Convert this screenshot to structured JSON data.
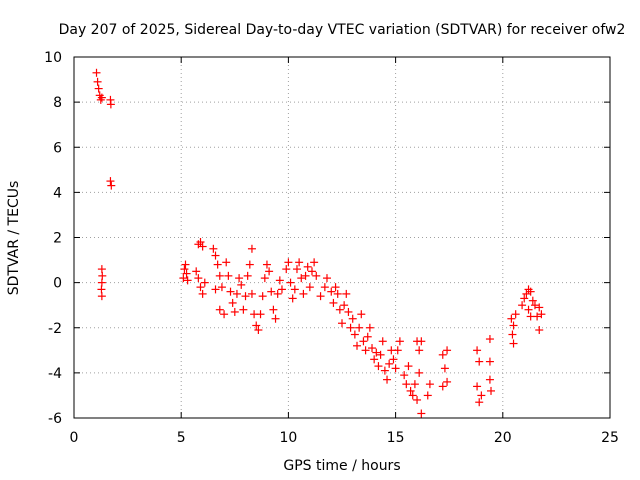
{
  "chart_data": {
    "type": "scatter",
    "title": "Day 207 of 2025, Sidereal Day-to-day VTEC variation (SDTVAR) for receiver ofw2",
    "xlabel": "GPS time / hours",
    "ylabel": "SDTVAR / TECUs",
    "xlim": [
      0,
      25
    ],
    "ylim": [
      -6,
      10
    ],
    "x_ticks": [
      0,
      5,
      10,
      15,
      20,
      25
    ],
    "x_tick_labels": [
      "0",
      "5",
      "10",
      "15",
      "20",
      "25"
    ],
    "y_ticks": [
      -6,
      -4,
      -2,
      0,
      2,
      4,
      6,
      8,
      10
    ],
    "y_tick_labels": [
      "-6",
      "-4",
      "-2",
      "0",
      "2",
      "4",
      "6",
      "8",
      "10"
    ],
    "grid": true,
    "marker": "+",
    "marker_color": "#ff0000",
    "series": [
      {
        "name": "SDTVAR",
        "points": [
          [
            1.05,
            9.3
          ],
          [
            1.1,
            8.9
          ],
          [
            1.15,
            8.6
          ],
          [
            1.2,
            8.3
          ],
          [
            1.25,
            8.1
          ],
          [
            1.3,
            8.2
          ],
          [
            1.7,
            8.1
          ],
          [
            1.72,
            7.9
          ],
          [
            1.7,
            4.5
          ],
          [
            1.74,
            4.3
          ],
          [
            1.3,
            0.6
          ],
          [
            1.32,
            0.3
          ],
          [
            1.3,
            0.0
          ],
          [
            1.28,
            -0.3
          ],
          [
            1.3,
            -0.6
          ],
          [
            5.1,
            0.2
          ],
          [
            5.15,
            0.6
          ],
          [
            5.2,
            0.8
          ],
          [
            5.25,
            0.4
          ],
          [
            5.3,
            0.1
          ],
          [
            5.8,
            1.7
          ],
          [
            5.9,
            1.8
          ],
          [
            6.0,
            1.6
          ],
          [
            5.7,
            0.5
          ],
          [
            5.8,
            0.2
          ],
          [
            5.9,
            -0.2
          ],
          [
            6.0,
            -0.5
          ],
          [
            6.1,
            0.0
          ],
          [
            6.5,
            1.5
          ],
          [
            6.6,
            1.2
          ],
          [
            6.7,
            0.8
          ],
          [
            6.8,
            0.3
          ],
          [
            6.9,
            -0.2
          ],
          [
            6.6,
            -0.3
          ],
          [
            6.8,
            -1.2
          ],
          [
            7.0,
            -1.4
          ],
          [
            7.1,
            0.9
          ],
          [
            7.2,
            0.3
          ],
          [
            7.3,
            -0.4
          ],
          [
            7.4,
            -0.9
          ],
          [
            7.5,
            -1.3
          ],
          [
            7.6,
            -0.5
          ],
          [
            7.7,
            0.2
          ],
          [
            7.8,
            -0.1
          ],
          [
            7.9,
            -1.2
          ],
          [
            8.0,
            -0.6
          ],
          [
            8.1,
            0.3
          ],
          [
            8.2,
            0.8
          ],
          [
            8.3,
            1.5
          ],
          [
            8.3,
            -0.5
          ],
          [
            8.4,
            -1.4
          ],
          [
            8.5,
            -1.9
          ],
          [
            8.6,
            -2.1
          ],
          [
            8.7,
            -1.4
          ],
          [
            8.8,
            -0.6
          ],
          [
            8.9,
            0.2
          ],
          [
            9.0,
            0.8
          ],
          [
            9.1,
            0.5
          ],
          [
            9.2,
            -0.4
          ],
          [
            9.3,
            -1.2
          ],
          [
            9.4,
            -1.6
          ],
          [
            9.5,
            -0.5
          ],
          [
            9.6,
            0.1
          ],
          [
            9.7,
            -0.3
          ],
          [
            9.9,
            0.6
          ],
          [
            10.0,
            0.9
          ],
          [
            10.1,
            0.0
          ],
          [
            10.2,
            -0.7
          ],
          [
            10.3,
            -0.3
          ],
          [
            10.4,
            0.6
          ],
          [
            10.5,
            0.9
          ],
          [
            10.6,
            0.2
          ],
          [
            10.7,
            -0.5
          ],
          [
            10.8,
            0.3
          ],
          [
            10.9,
            0.7
          ],
          [
            11.0,
            -0.2
          ],
          [
            11.1,
            0.5
          ],
          [
            11.2,
            0.9
          ],
          [
            11.3,
            0.3
          ],
          [
            11.5,
            -0.6
          ],
          [
            11.7,
            -0.2
          ],
          [
            11.8,
            0.2
          ],
          [
            12.0,
            -0.4
          ],
          [
            12.1,
            -0.9
          ],
          [
            12.2,
            -0.2
          ],
          [
            12.3,
            -0.5
          ],
          [
            12.4,
            -1.2
          ],
          [
            12.5,
            -1.8
          ],
          [
            12.6,
            -1.0
          ],
          [
            12.7,
            -0.5
          ],
          [
            12.8,
            -1.3
          ],
          [
            12.9,
            -2.0
          ],
          [
            13.0,
            -1.6
          ],
          [
            13.1,
            -2.3
          ],
          [
            13.2,
            -2.8
          ],
          [
            13.3,
            -2.0
          ],
          [
            13.4,
            -1.4
          ],
          [
            13.5,
            -2.6
          ],
          [
            13.6,
            -3.0
          ],
          [
            13.7,
            -2.4
          ],
          [
            13.8,
            -2.0
          ],
          [
            13.9,
            -2.9
          ],
          [
            14.0,
            -3.4
          ],
          [
            14.1,
            -3.1
          ],
          [
            14.2,
            -3.7
          ],
          [
            14.3,
            -3.2
          ],
          [
            14.4,
            -2.6
          ],
          [
            14.5,
            -3.9
          ],
          [
            14.6,
            -4.3
          ],
          [
            14.7,
            -3.6
          ],
          [
            14.8,
            -3.0
          ],
          [
            14.9,
            -3.4
          ],
          [
            15.0,
            -3.8
          ],
          [
            15.1,
            -3.0
          ],
          [
            15.2,
            -2.6
          ],
          [
            15.4,
            -4.1
          ],
          [
            15.5,
            -4.5
          ],
          [
            15.6,
            -3.7
          ],
          [
            15.7,
            -4.8
          ],
          [
            15.8,
            -5.0
          ],
          [
            15.9,
            -4.5
          ],
          [
            16.0,
            -5.2
          ],
          [
            16.1,
            -4.0
          ],
          [
            16.2,
            -5.8
          ],
          [
            16.0,
            -2.6
          ],
          [
            16.1,
            -3.0
          ],
          [
            16.2,
            -2.6
          ],
          [
            16.5,
            -5.0
          ],
          [
            16.6,
            -4.5
          ],
          [
            17.2,
            -3.2
          ],
          [
            17.3,
            -3.8
          ],
          [
            17.4,
            -4.4
          ],
          [
            17.2,
            -4.6
          ],
          [
            17.4,
            -3.0
          ],
          [
            18.8,
            -3.0
          ],
          [
            18.9,
            -3.5
          ],
          [
            18.8,
            -4.6
          ],
          [
            18.9,
            -5.3
          ],
          [
            19.0,
            -5.0
          ],
          [
            19.4,
            -2.5
          ],
          [
            19.4,
            -3.5
          ],
          [
            19.4,
            -4.3
          ],
          [
            19.45,
            -4.8
          ],
          [
            20.4,
            -1.6
          ],
          [
            20.5,
            -1.9
          ],
          [
            20.45,
            -2.3
          ],
          [
            20.5,
            -2.7
          ],
          [
            20.6,
            -1.4
          ],
          [
            20.9,
            -1.0
          ],
          [
            21.0,
            -0.7
          ],
          [
            21.1,
            -0.5
          ],
          [
            21.2,
            -0.3
          ],
          [
            21.3,
            -0.4
          ],
          [
            21.4,
            -0.8
          ],
          [
            21.5,
            -1.0
          ],
          [
            21.6,
            -1.5
          ],
          [
            21.2,
            -1.2
          ],
          [
            21.3,
            -1.5
          ],
          [
            21.7,
            -1.1
          ],
          [
            21.8,
            -1.4
          ],
          [
            21.7,
            -2.1
          ]
        ]
      }
    ]
  }
}
